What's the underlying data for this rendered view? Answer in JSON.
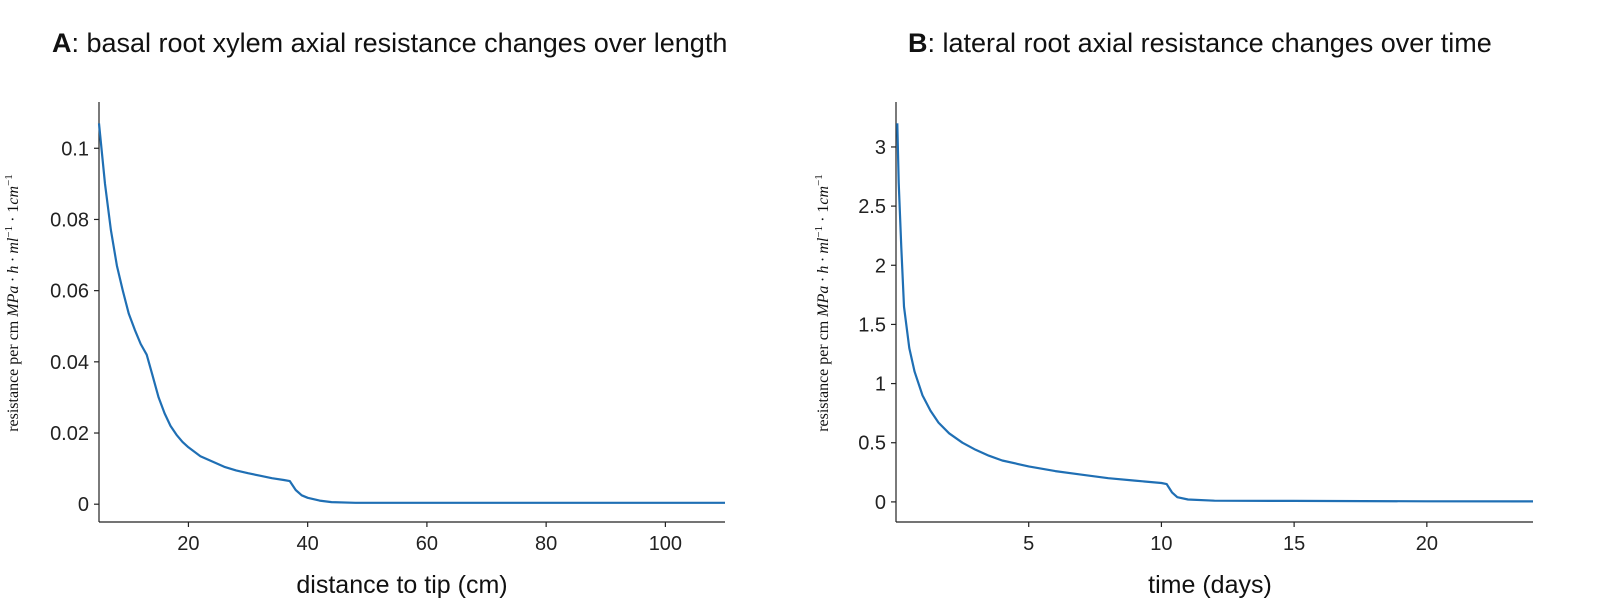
{
  "chart_data": [
    {
      "id": "A",
      "type": "line",
      "title_letter": "A",
      "title_text": ": basal root xylem axial resistance changes over length",
      "xlabel": "distance to tip (cm)",
      "ylabel": "resistance per cm MPa · h · ml⁻¹ · 1cm⁻¹",
      "ylabel_parts": {
        "plain": "resistance per cm ",
        "italic": "MPa · h · ml",
        "sup1": "−1",
        "mid": " · 1",
        "italic2": "cm",
        "sup2": "−1"
      },
      "xlim": [
        5,
        110
      ],
      "ylim": [
        -0.005,
        0.113
      ],
      "xticks": [
        20,
        40,
        60,
        80,
        100
      ],
      "xtick_labels": [
        "20",
        "40",
        "60",
        "80",
        "100"
      ],
      "yticks": [
        0,
        0.02,
        0.04,
        0.06,
        0.08,
        0.1
      ],
      "ytick_labels": [
        "0",
        "0.02",
        "0.04",
        "0.06",
        "0.08",
        "0.1"
      ],
      "series": [
        {
          "color": "#1f6fb4",
          "x": [
            5,
            6,
            7,
            8,
            9,
            10,
            11,
            12,
            13,
            14,
            15,
            16,
            17,
            18,
            19,
            20,
            22,
            24,
            26,
            28,
            30,
            32,
            34,
            36,
            37,
            38,
            39,
            40,
            42,
            44,
            48,
            60,
            80,
            100,
            110
          ],
          "y": [
            0.107,
            0.09,
            0.077,
            0.067,
            0.06,
            0.0535,
            0.049,
            0.045,
            0.042,
            0.036,
            0.03,
            0.0255,
            0.022,
            0.0195,
            0.0175,
            0.016,
            0.0135,
            0.012,
            0.0105,
            0.0095,
            0.0087,
            0.008,
            0.0073,
            0.0068,
            0.0065,
            0.004,
            0.0025,
            0.0018,
            0.001,
            0.0006,
            0.0004,
            0.0004,
            0.0004,
            0.0004,
            0.0004
          ]
        }
      ]
    },
    {
      "id": "B",
      "type": "line",
      "title_letter": "B",
      "title_text": ": lateral root axial resistance changes over time",
      "xlabel": "time (days)",
      "ylabel": "resistance per cm MPa · h · ml⁻¹ · 1cm⁻¹",
      "ylabel_parts": {
        "plain": "resistance per cm ",
        "italic": "MPa · h · ml",
        "sup1": "−1",
        "mid": " · 1",
        "italic2": "cm",
        "sup2": "−1"
      },
      "xlim": [
        0,
        24
      ],
      "ylim": [
        -0.17,
        3.38
      ],
      "xticks": [
        5,
        10,
        15,
        20
      ],
      "xtick_labels": [
        "5",
        "10",
        "15",
        "20"
      ],
      "yticks": [
        0,
        0.5,
        1,
        1.5,
        2,
        2.5,
        3
      ],
      "ytick_labels": [
        "0",
        "0.5",
        "1",
        "1.5",
        "2",
        "2.5",
        "3"
      ],
      "series": [
        {
          "color": "#1f6fb4",
          "x": [
            0.05,
            0.1,
            0.2,
            0.3,
            0.5,
            0.7,
            1.0,
            1.3,
            1.6,
            2.0,
            2.5,
            3.0,
            3.5,
            4.0,
            5.0,
            6.0,
            7.0,
            8.0,
            9.0,
            10.0,
            10.2,
            10.4,
            10.6,
            11.0,
            12.0,
            15.0,
            20.0,
            24.0
          ],
          "y": [
            3.2,
            2.7,
            2.15,
            1.65,
            1.3,
            1.1,
            0.9,
            0.77,
            0.67,
            0.58,
            0.5,
            0.44,
            0.39,
            0.35,
            0.3,
            0.26,
            0.23,
            0.2,
            0.18,
            0.16,
            0.15,
            0.08,
            0.04,
            0.02,
            0.01,
            0.008,
            0.005,
            0.004
          ]
        }
      ]
    }
  ]
}
